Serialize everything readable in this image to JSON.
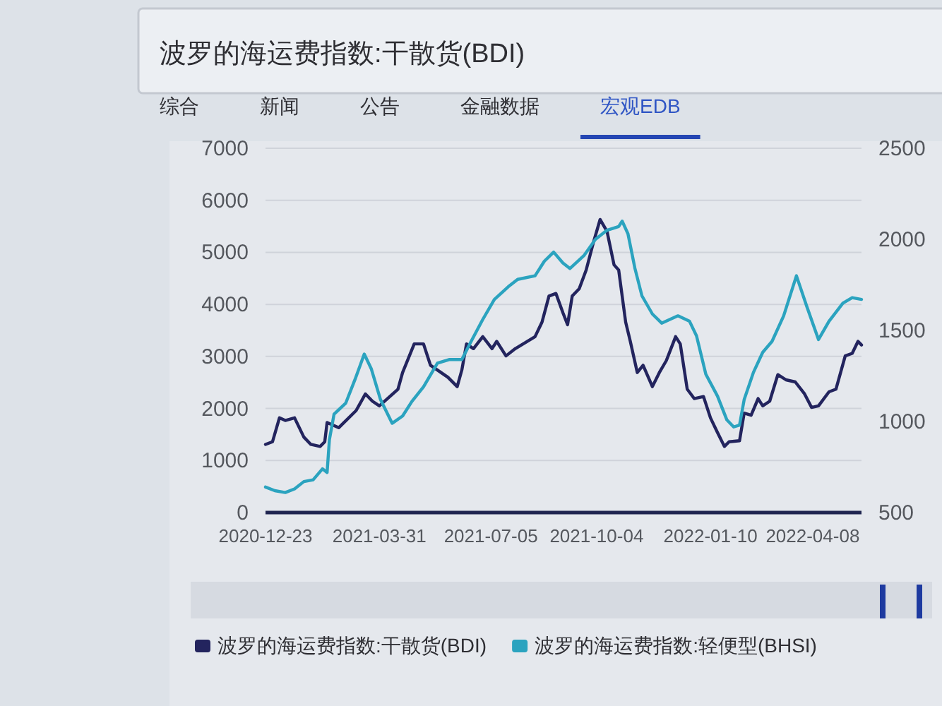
{
  "chart_data": {
    "type": "line",
    "title": "波罗的海运费指数:干散货(BDI)",
    "annotations": [
      "综合",
      "新闻",
      "公告",
      "金融数据",
      "宏观EDB"
    ],
    "xlim": [
      "2020-12-23",
      "2022-05-20"
    ],
    "xticks": [
      "2020-12-23",
      "2021-03-31",
      "2021-07-05",
      "2021-10-04",
      "2022-01-10",
      "2022-04-08"
    ],
    "ylim": [
      0,
      7000
    ],
    "yticks": [
      0,
      1000,
      2000,
      3000,
      4000,
      5000,
      6000,
      7000
    ],
    "y2lim": [
      500,
      2500
    ],
    "y2ticks": [
      500,
      1000,
      1500,
      2000,
      2500
    ],
    "grid": "y",
    "legend": "bottom",
    "series": [
      {
        "name": "波罗的海运费指数:干散货(BDI)",
        "color": "#23245e",
        "x": [
          "2020-12-23",
          "2020-12-29",
          "2021-01-04",
          "2021-01-09",
          "2021-01-17",
          "2021-01-25",
          "2021-01-31",
          "2021-02-08",
          "2021-02-12",
          "2021-02-14",
          "2021-02-24",
          "2021-03-11",
          "2021-03-19",
          "2021-03-25",
          "2021-03-31",
          "2021-04-16",
          "2021-04-20",
          "2021-04-30",
          "2021-05-08",
          "2021-05-14",
          "2021-05-29",
          "2021-06-06",
          "2021-06-10",
          "2021-06-14",
          "2021-06-20",
          "2021-06-28",
          "2021-07-06",
          "2021-07-10",
          "2021-07-18",
          "2021-07-26",
          "2021-08-12",
          "2021-08-18",
          "2021-08-24",
          "2021-08-30",
          "2021-09-05",
          "2021-09-09",
          "2021-09-13",
          "2021-09-19",
          "2021-09-25",
          "2021-10-01",
          "2021-10-07",
          "2021-10-13",
          "2021-10-19",
          "2021-10-23",
          "2021-10-29",
          "2021-11-02",
          "2021-11-08",
          "2021-11-13",
          "2021-11-21",
          "2021-11-27",
          "2021-12-03",
          "2021-12-11",
          "2021-12-15",
          "2021-12-21",
          "2021-12-27",
          "2022-01-04",
          "2022-01-10",
          "2022-01-16",
          "2022-01-22",
          "2022-01-26",
          "2022-02-04",
          "2022-02-08",
          "2022-02-14",
          "2022-02-20",
          "2022-02-24",
          "2022-03-02",
          "2022-03-09",
          "2022-03-16",
          "2022-03-24",
          "2022-04-01",
          "2022-04-07",
          "2022-04-13",
          "2022-04-22",
          "2022-04-28",
          "2022-05-06",
          "2022-05-12",
          "2022-05-17",
          "2022-05-20"
        ],
        "values": [
          1310,
          1360,
          1820,
          1770,
          1820,
          1450,
          1310,
          1270,
          1360,
          1730,
          1630,
          1960,
          2280,
          2140,
          2050,
          2370,
          2690,
          3240,
          3240,
          2830,
          2600,
          2420,
          2740,
          3240,
          3150,
          3380,
          3150,
          3290,
          3010,
          3150,
          3380,
          3660,
          4160,
          4210,
          3840,
          3610,
          4160,
          4300,
          4660,
          5170,
          5630,
          5400,
          4760,
          4660,
          3660,
          3290,
          2690,
          2830,
          2420,
          2690,
          2920,
          3380,
          3240,
          2370,
          2190,
          2230,
          1820,
          1540,
          1270,
          1360,
          1380,
          1910,
          1870,
          2190,
          2050,
          2140,
          2650,
          2550,
          2510,
          2280,
          2020,
          2050,
          2320,
          2370,
          3010,
          3060,
          3290,
          3220
        ]
      },
      {
        "name": "波罗的海运费指数:轻便型(BHSI)",
        "color": "#2ba3bf",
        "axis": "y2",
        "x": [
          "2020-12-23",
          "2020-12-31",
          "2021-01-09",
          "2021-01-17",
          "2021-01-25",
          "2021-02-02",
          "2021-02-10",
          "2021-02-14",
          "2021-02-16",
          "2021-02-20",
          "2021-03-02",
          "2021-03-10",
          "2021-03-18",
          "2021-03-24",
          "2021-04-01",
          "2021-04-11",
          "2021-04-20",
          "2021-04-28",
          "2021-05-08",
          "2021-05-20",
          "2021-05-30",
          "2021-06-10",
          "2021-06-18",
          "2021-06-28",
          "2021-07-08",
          "2021-07-20",
          "2021-07-28",
          "2021-08-12",
          "2021-08-20",
          "2021-08-28",
          "2021-09-05",
          "2021-09-11",
          "2021-09-23",
          "2021-10-03",
          "2021-10-13",
          "2021-10-23",
          "2021-10-26",
          "2021-10-31",
          "2021-11-06",
          "2021-11-12",
          "2021-11-21",
          "2021-11-29",
          "2021-12-13",
          "2021-12-23",
          "2021-12-29",
          "2022-01-06",
          "2022-01-16",
          "2022-01-24",
          "2022-01-30",
          "2022-02-04",
          "2022-02-08",
          "2022-02-16",
          "2022-02-24",
          "2022-03-04",
          "2022-03-14",
          "2022-03-25",
          "2022-04-03",
          "2022-04-13",
          "2022-04-22",
          "2022-05-04",
          "2022-05-12",
          "2022-05-20"
        ],
        "values": [
          640,
          620,
          610,
          630,
          670,
          680,
          740,
          720,
          900,
          1040,
          1100,
          1230,
          1370,
          1290,
          1120,
          990,
          1030,
          1110,
          1190,
          1320,
          1340,
          1340,
          1440,
          1560,
          1670,
          1740,
          1780,
          1800,
          1880,
          1930,
          1870,
          1840,
          1910,
          2000,
          2050,
          2070,
          2100,
          2030,
          1840,
          1690,
          1590,
          1540,
          1580,
          1550,
          1470,
          1260,
          1140,
          1010,
          970,
          980,
          1120,
          1270,
          1380,
          1440,
          1580,
          1800,
          1630,
          1450,
          1550,
          1650,
          1680,
          1670
        ]
      }
    ]
  }
}
